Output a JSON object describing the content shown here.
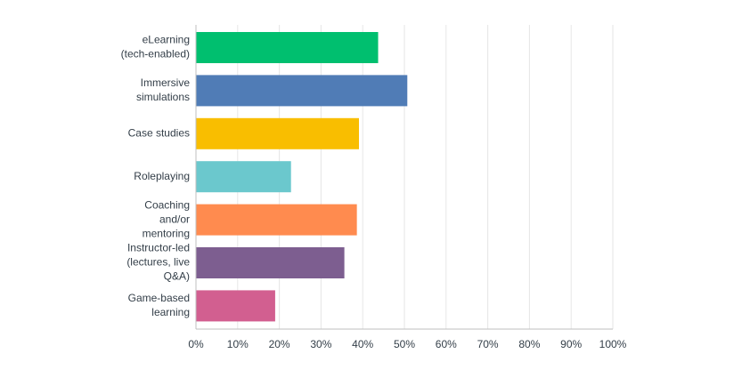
{
  "chart_data": {
    "type": "bar",
    "orientation": "horizontal",
    "categories": [
      [
        "eLearning",
        "(tech-enabled)"
      ],
      [
        "Immersive",
        "simulations"
      ],
      [
        "Case studies"
      ],
      [
        "Roleplaying"
      ],
      [
        "Coaching",
        "and/or",
        "mentoring"
      ],
      [
        "Instructor-led",
        "(lectures, live",
        "Q&A)"
      ],
      [
        "Game-based",
        "learning"
      ]
    ],
    "values": [
      43.7,
      50.7,
      39.1,
      22.8,
      38.6,
      35.6,
      19.0
    ],
    "colors": [
      "#00bf6f",
      "#507cb6",
      "#f9be00",
      "#6bc8cd",
      "#ff8b4f",
      "#7d5e90",
      "#d25f90"
    ],
    "xlim": [
      0,
      100
    ],
    "ticks": [
      "0%",
      "10%",
      "20%",
      "30%",
      "40%",
      "50%",
      "60%",
      "70%",
      "80%",
      "90%",
      "100%"
    ],
    "grid": true,
    "title": "",
    "xlabel": "",
    "ylabel": ""
  }
}
